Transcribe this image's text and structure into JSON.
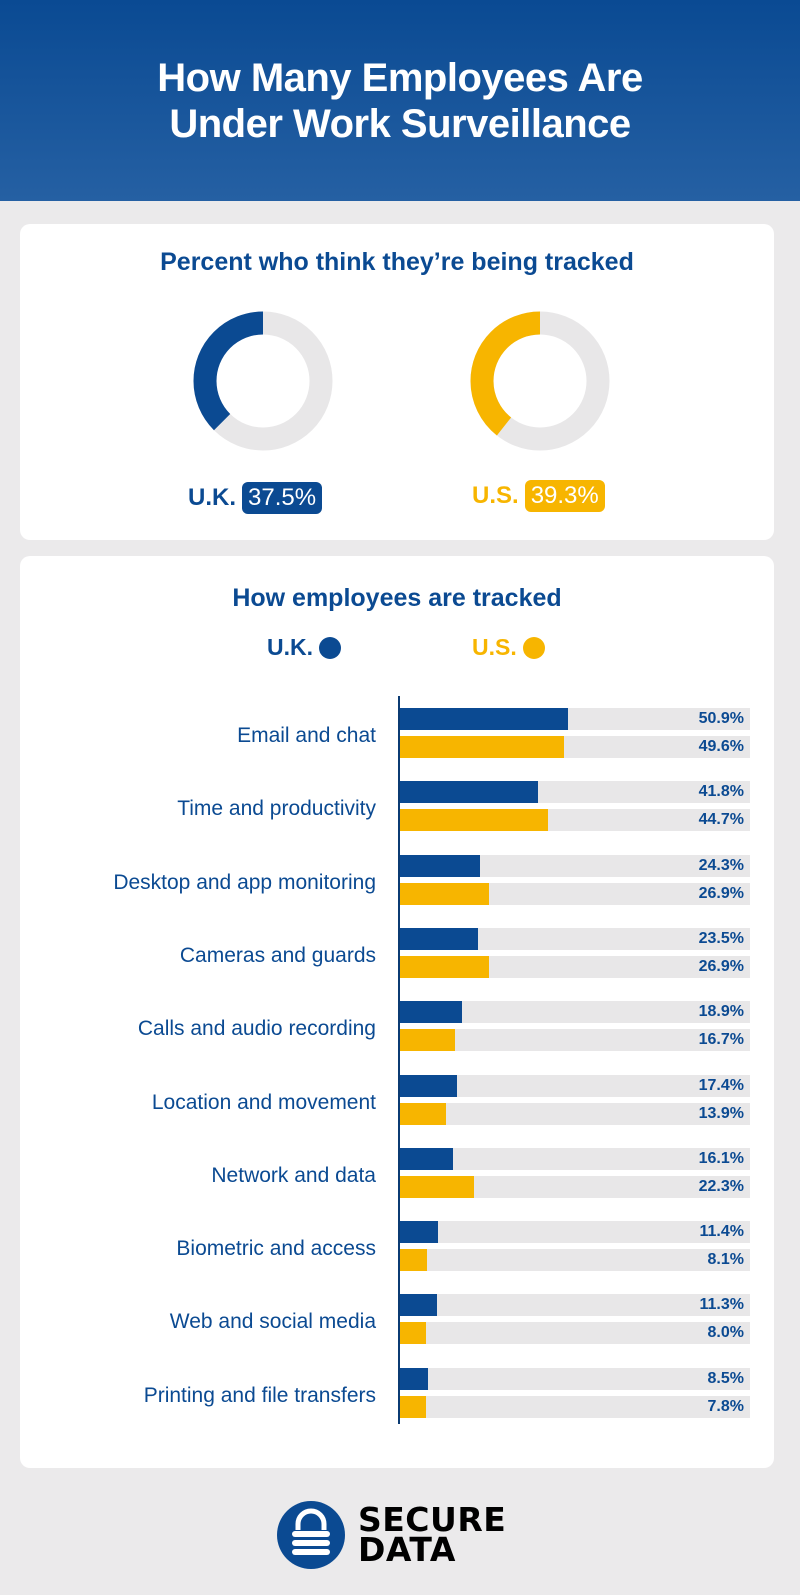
{
  "title": "How Many Employees Are Under Work Surveillance",
  "colors": {
    "uk": "#0b4a92",
    "us": "#f7b500",
    "track": "#e8e7e8",
    "header": "#0a4a93"
  },
  "chart_data": [
    {
      "type": "pie",
      "title": "Percent who think they’re being tracked",
      "series": [
        {
          "name": "U.K.",
          "value": 37.5,
          "label": "37.5%"
        },
        {
          "name": "U.S.",
          "value": 39.3,
          "label": "39.3%"
        }
      ]
    },
    {
      "type": "bar",
      "orientation": "horizontal",
      "title": "How employees are tracked",
      "legend": [
        "U.K.",
        "U.S."
      ],
      "legend_position": "top",
      "xlim": [
        0,
        100
      ],
      "categories": [
        "Email and chat",
        "Time and productivity",
        "Desktop and app monitoring",
        "Cameras and guards",
        "Calls and audio recording",
        "Location and movement",
        "Network and data",
        "Biometric and access",
        "Web and social media",
        "Printing and file transfers"
      ],
      "series": [
        {
          "name": "U.K.",
          "values": [
            50.9,
            41.8,
            24.3,
            23.5,
            18.9,
            17.4,
            16.1,
            11.4,
            11.3,
            8.5
          ],
          "labels": [
            "50.9%",
            "41.8%",
            "24.3%",
            "23.5%",
            "18.9%",
            "17.4%",
            "16.1%",
            "11.4%",
            "11.3%",
            "8.5%"
          ]
        },
        {
          "name": "U.S.",
          "values": [
            49.6,
            44.7,
            26.9,
            26.9,
            16.7,
            13.9,
            22.3,
            8.1,
            8.0,
            7.8
          ],
          "labels": [
            "49.6%",
            "44.7%",
            "26.9%",
            "26.9%",
            "16.7%",
            "13.9%",
            "22.3%",
            "8.1%",
            "8.0%",
            "7.8%"
          ]
        }
      ]
    }
  ],
  "logo": {
    "icon": "padlock-icon",
    "line1": "SECURE",
    "line2": "DATA"
  }
}
